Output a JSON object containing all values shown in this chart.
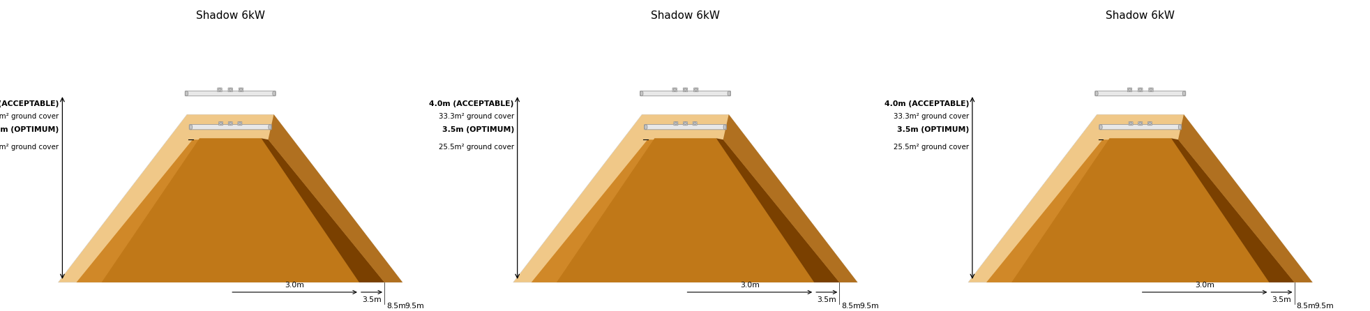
{
  "title": "Shadow 6kW",
  "num_panels": 3,
  "bg_color": "#ffffff",
  "label_acceptable": "4.0m (ACCEPTABLE)",
  "label_acceptable_area": "33.3m² ground cover",
  "label_optimum": "3.5m (OPTIMUM)",
  "label_optimum_area": "25.5m² ground cover",
  "dim_inner": "3.0m",
  "dim_mid": "3.5m",
  "dim_bottom": "8.5m",
  "dim_bottom2": "9.5m",
  "color_outer_light": "#f0c888",
  "color_mid_orange": "#d08828",
  "color_inner_dark": "#c07818",
  "color_shadow_right_outer": "#b07020",
  "color_shadow_right_inner": "#7a4000",
  "title_fontsize": 11
}
